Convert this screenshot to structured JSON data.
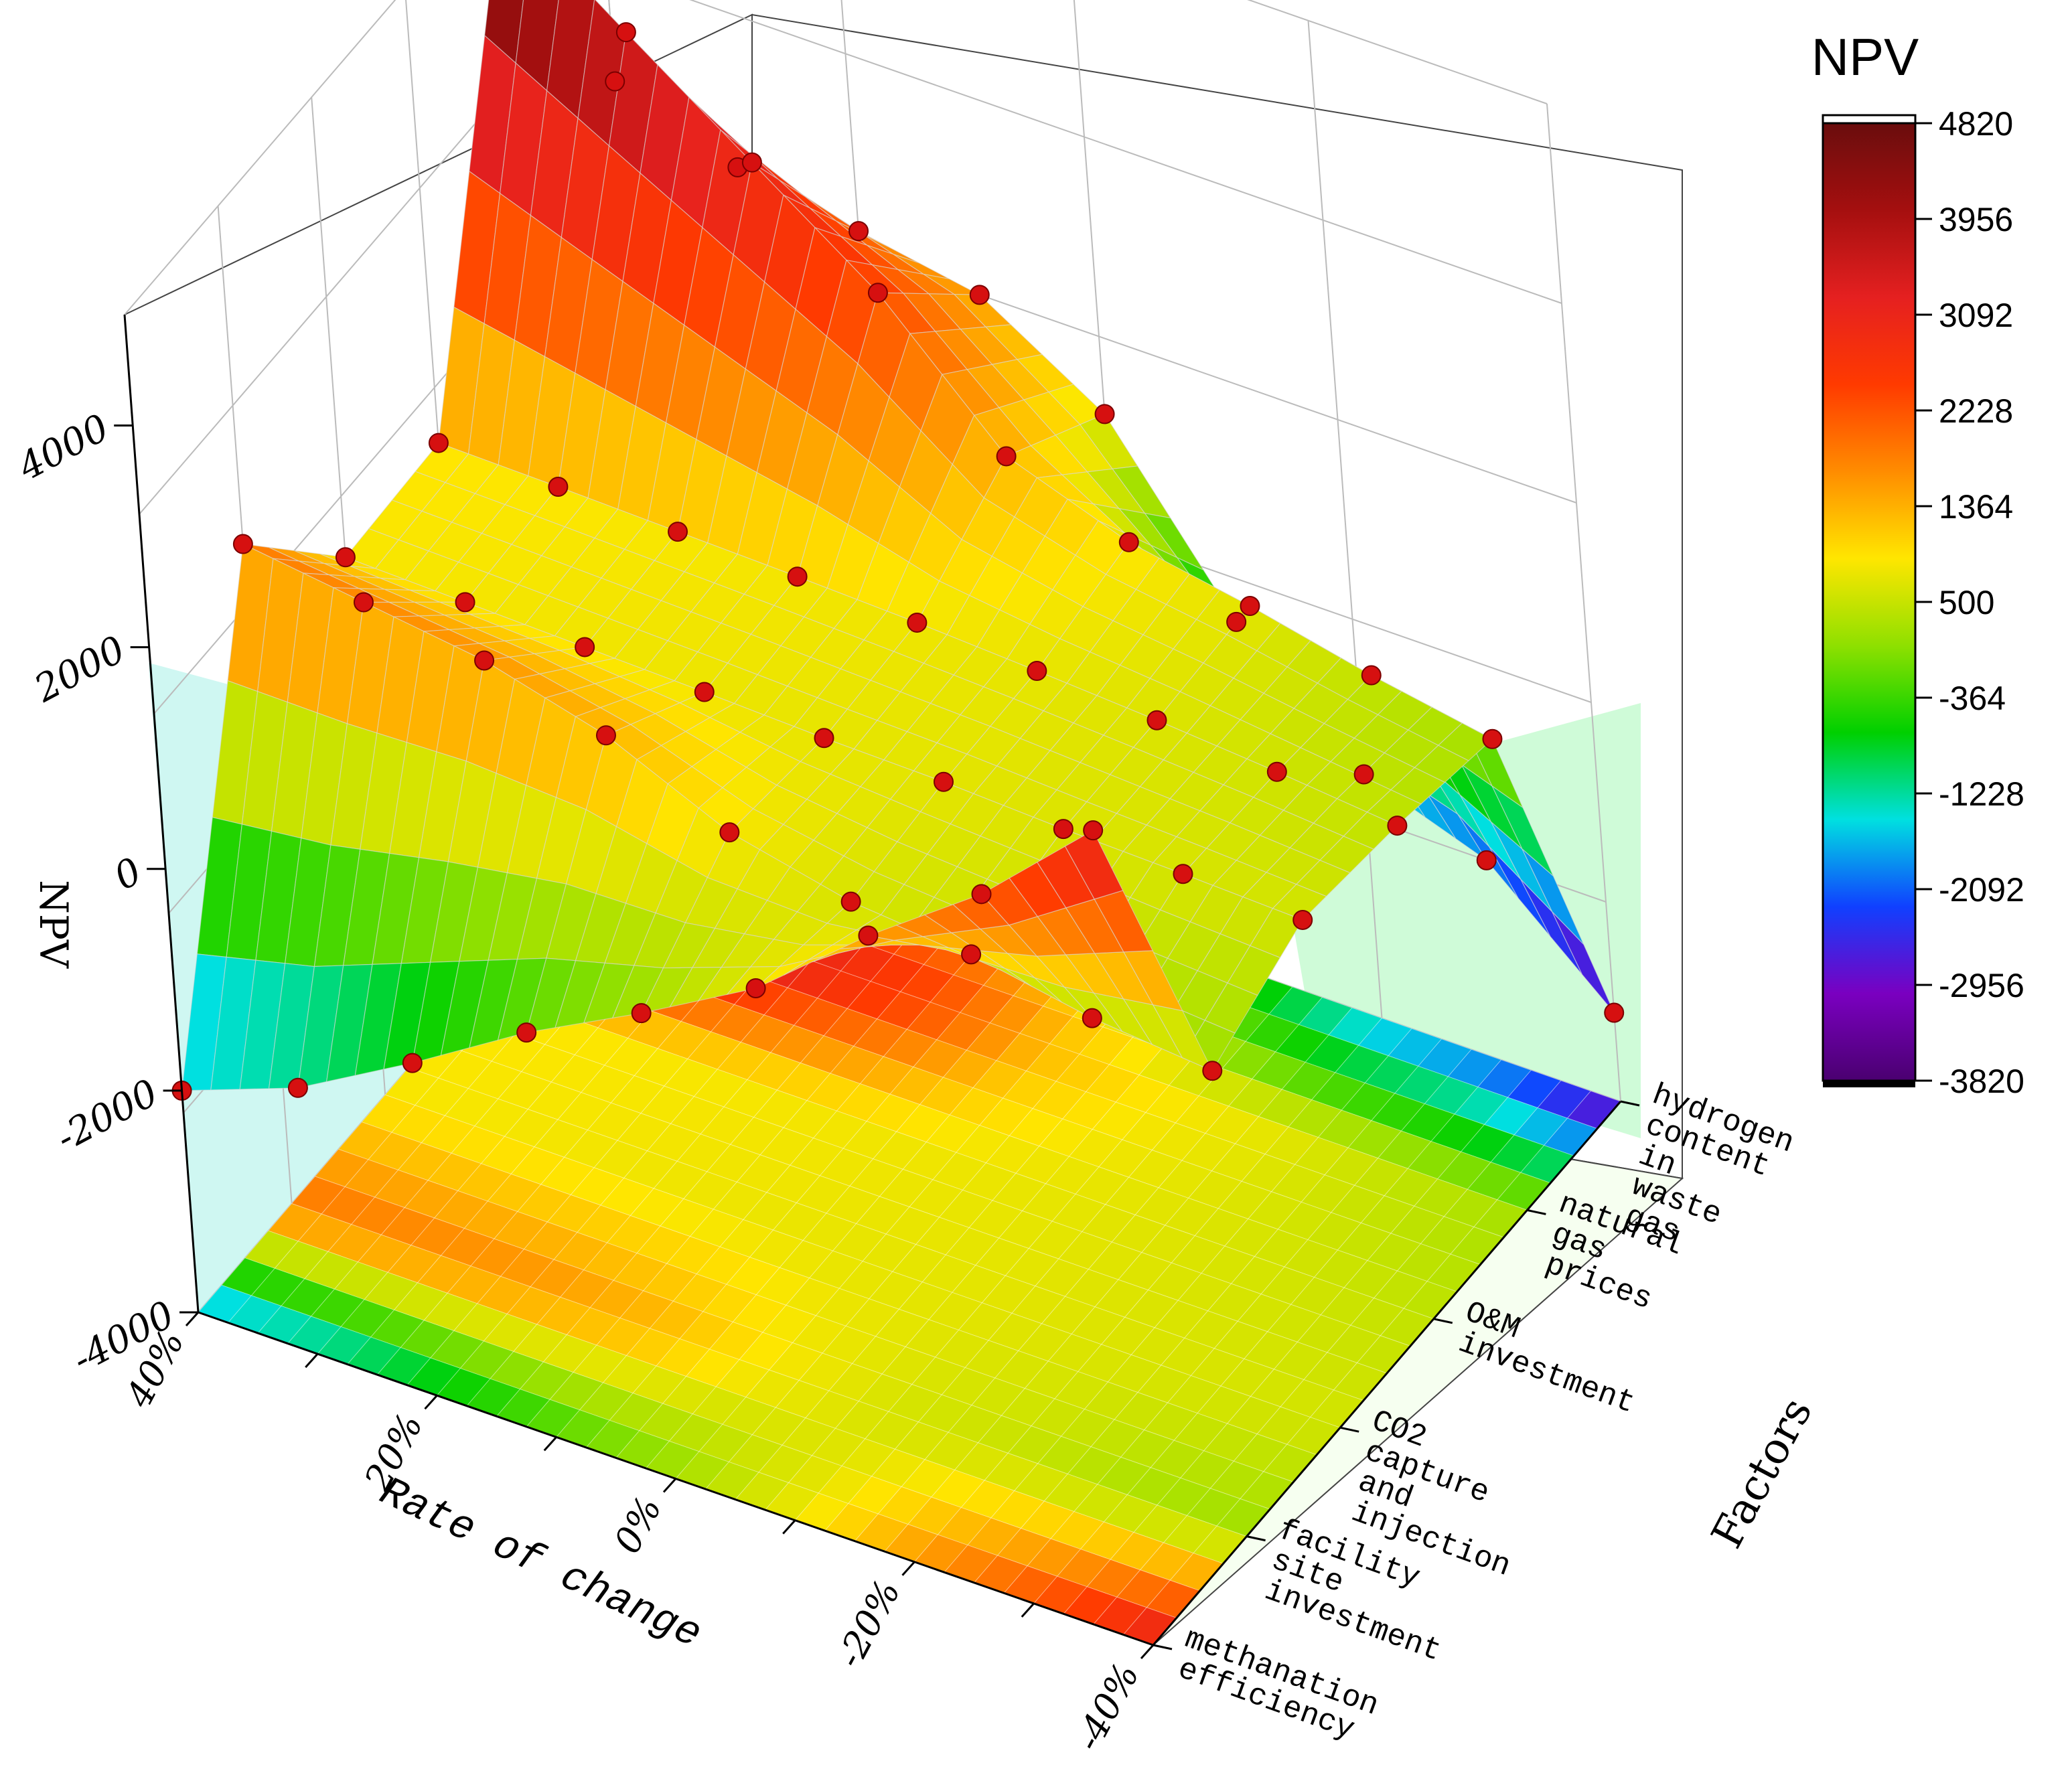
{
  "chart_data": {
    "type": "surface3d",
    "title": "",
    "zlabel": "NPV",
    "xlabel": "Rate of change",
    "ylabel": "Factors",
    "zlim": [
      -4000,
      5000
    ],
    "z_ticks": [
      "-4000",
      "-2000",
      "0",
      "2000",
      "4000"
    ],
    "x_ticks": [
      "40%",
      "20%",
      "0%",
      "-20%",
      "-40%"
    ],
    "x_values": [
      40,
      30,
      20,
      10,
      0,
      -10,
      -20,
      -30,
      -40
    ],
    "factors": [
      [
        "methanation",
        "efficiency"
      ],
      [
        "facility",
        "site",
        "investment"
      ],
      [
        "CO2",
        "capture",
        "and",
        "injection"
      ],
      [
        "O&M",
        "investment"
      ],
      [
        "natural",
        "gas",
        "prices"
      ],
      [
        "hydrogen",
        "content",
        "in",
        "waste",
        "gas"
      ]
    ],
    "series": [
      {
        "factor_index": 0,
        "values": [
          -2000,
          -1600,
          -1000,
          -350,
          200,
          800,
          1650,
          2400,
          3350
        ]
      },
      {
        "factor_index": 1,
        "values": [
          1950,
          1800,
          1650,
          1350,
          850,
          600,
          500,
          300,
          200
        ]
      },
      {
        "factor_index": 2,
        "values": [
          850,
          820,
          790,
          760,
          720,
          700,
          650,
          620,
          580
        ]
      },
      {
        "factor_index": 3,
        "values": [
          900,
          880,
          850,
          820,
          780,
          720,
          650,
          560,
          450
        ]
      },
      {
        "factor_index": 4,
        "values": [
          4820,
          4000,
          3200,
          2400,
          1300,
          900,
          700,
          450,
          250
        ]
      },
      {
        "factor_index": 5,
        "values": [
          2200,
          1800,
          1600,
          1400,
          700,
          -800,
          -1800,
          -2200,
          -3200
        ]
      }
    ],
    "colorbar": {
      "title": "NPV",
      "ticks": [
        4820,
        3956,
        3092,
        2228,
        1364,
        500,
        -364,
        -1228,
        -2092,
        -2956,
        -3820
      ],
      "stops": [
        "#6a0d0d",
        "#a50f0f",
        "#e52020",
        "#ff3a00",
        "#ff8c00",
        "#ffe600",
        "#8fe000",
        "#00d000",
        "#00e0e0",
        "#1040ff",
        "#7a00c0",
        "#4a0070"
      ]
    },
    "grid": true,
    "legend": "right"
  }
}
